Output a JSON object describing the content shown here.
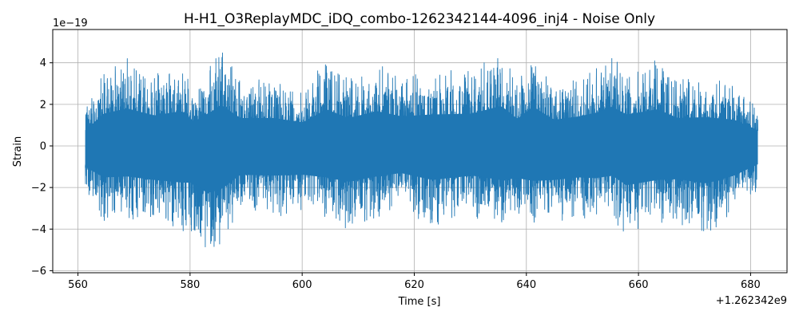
{
  "chart_data": {
    "type": "line",
    "title": "H-H1_O3ReplayMDC_iDQ_combo-1262342144-4096_inj4 - Noise Only",
    "xlabel": "Time [s]",
    "ylabel": "Strain",
    "x_offset_label": "+1.262342e9",
    "y_scale_label": "1e−19",
    "xlim": [
      555.5,
      686.5
    ],
    "ylim": [
      -6.1,
      5.6
    ],
    "x_ticks": [
      560,
      580,
      600,
      620,
      640,
      660,
      680
    ],
    "x_tick_labels": [
      "560",
      "580",
      "600",
      "620",
      "640",
      "660",
      "680"
    ],
    "y_ticks": [
      -6,
      -4,
      -2,
      0,
      2,
      4
    ],
    "y_tick_labels": [
      "−6",
      "−4",
      "−2",
      "0",
      "2",
      "4"
    ],
    "grid": true,
    "series": [
      {
        "color": "#1f77b4",
        "x_range": [
          561.3,
          681.3
        ],
        "envelope": {
          "x": [
            561.3,
            564.6,
            568.8,
            573.6,
            578.6,
            580.7,
            583.0,
            585.5,
            589.0,
            594.9,
            600.1,
            604.3,
            608.3,
            613.3,
            617.6,
            623.2,
            630.3,
            635.5,
            638.4,
            641.2,
            645.0,
            649.5,
            652.4,
            655.3,
            657.9,
            663.4,
            667.0,
            672.1,
            677.1,
            681.3
          ],
          "upper": [
            1.8,
            3.7,
            4.3,
            3.5,
            4.0,
            2.8,
            3.6,
            4.7,
            3.2,
            3.2,
            2.7,
            4.2,
            3.2,
            4.0,
            3.4,
            3.6,
            3.7,
            4.6,
            3.1,
            4.5,
            3.0,
            3.4,
            3.8,
            4.5,
            3.6,
            4.2,
            3.2,
            3.3,
            3.0,
            1.8
          ],
          "lower": [
            -2.4,
            -3.6,
            -3.5,
            -3.9,
            -4.2,
            -4.2,
            -5.4,
            -5.0,
            -3.3,
            -3.4,
            -3.3,
            -3.6,
            -4.1,
            -3.5,
            -3.1,
            -3.9,
            -3.4,
            -3.9,
            -3.7,
            -4.0,
            -3.9,
            -3.6,
            -3.7,
            -3.4,
            -4.5,
            -3.9,
            -3.8,
            -4.3,
            -3.4,
            -2.1
          ]
        }
      }
    ]
  }
}
